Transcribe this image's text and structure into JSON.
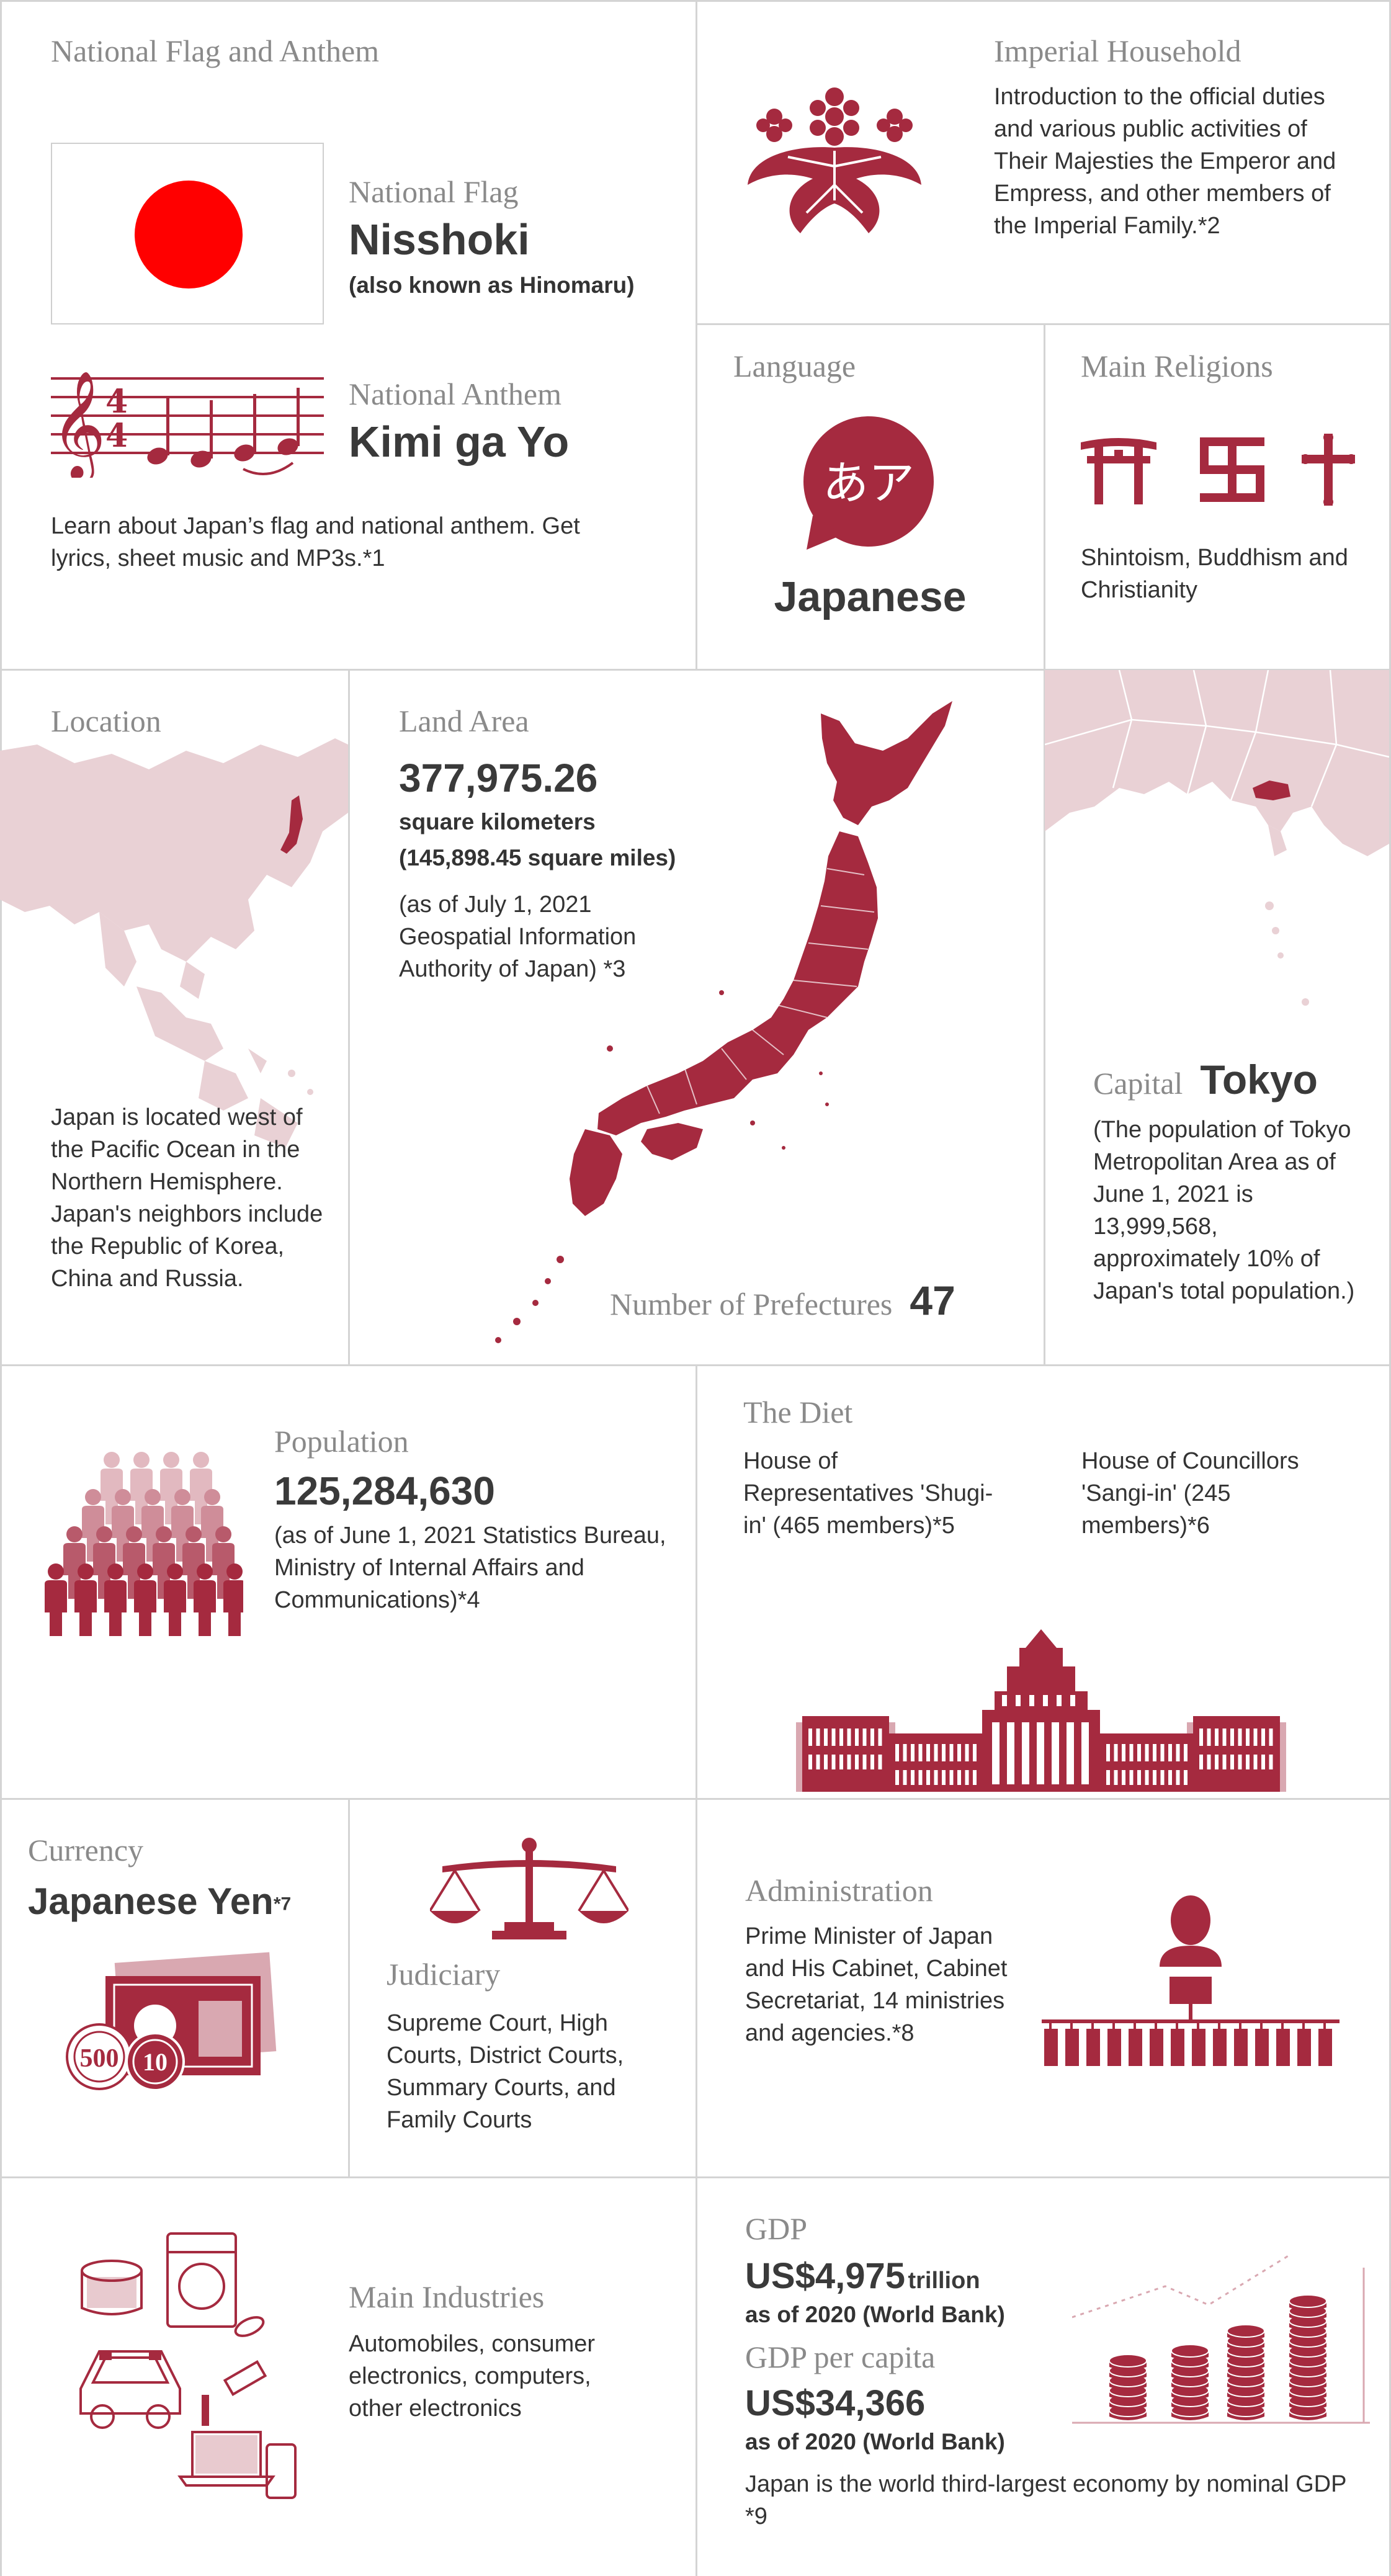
{
  "colors": {
    "accent": "#a52a3f",
    "accent_light": "#e9d1d5",
    "flag_red": "#ff0000",
    "rule": "#d4d4d4",
    "text": "#333333",
    "heading": "#8a8a8a"
  },
  "flag_anthem": {
    "heading": "National Flag and Anthem",
    "flag_label": "National Flag",
    "flag_name": "Nisshoki",
    "flag_aka": "(also known as Hinomaru)",
    "anthem_label": "National Anthem",
    "anthem_name": "Kimi ga Yo",
    "time_sig_top": "4",
    "time_sig_bottom": "4",
    "desc": "Learn about Japan’s flag and national anthem. Get lyrics, sheet music and MP3s.*1"
  },
  "imperial": {
    "heading": "Imperial Household",
    "desc": "Introduction to the official duties and various public activities of Their Majesties the Emperor and Empress, and other members of the Imperial Family.*2",
    "icon": "paulownia-crest-icon"
  },
  "language": {
    "heading": "Language",
    "glyph": "あア",
    "value": "Japanese"
  },
  "religions": {
    "heading": "Main Religions",
    "icons": [
      "torii-icon",
      "manji-icon",
      "cross-icon"
    ],
    "desc": "Shintoism, Buddhism and Christianity"
  },
  "location": {
    "heading": "Location",
    "desc": "Japan is located west of the Pacific Ocean in the Northern Hemisphere. Japan's neighbors include the Republic of Korea, China and Russia."
  },
  "land": {
    "heading": "Land Area",
    "value": "377,975.26",
    "unit": "square kilometers",
    "miles": "(145,898.45 square miles)",
    "note": "(as of July 1, 2021 Geospatial Information Authority of Japan) *3",
    "prefectures_label": "Number of Prefectures",
    "prefectures_value": "47"
  },
  "capital": {
    "heading": "Capital",
    "value": "Tokyo",
    "desc": "(The population of Tokyo Metropolitan Area as of June 1, 2021 is 13,999,568, approximately 10% of Japan's total population.)"
  },
  "population": {
    "heading": "Population",
    "value": "125,284,630",
    "note": "(as of June 1, 2021 Statistics Bureau, Ministry of Internal Affairs and Communications)*4"
  },
  "diet": {
    "heading": "The Diet",
    "house_rep": "House of Representatives 'Shugi-in' (465 members)*5",
    "house_coun": "House of Councillors 'Sangi-in' (245 members)*6"
  },
  "currency": {
    "heading": "Currency",
    "value": "Japanese Yen",
    "note": "*7",
    "coin_500": "500",
    "coin_10": "10"
  },
  "judiciary": {
    "heading": "Judiciary",
    "desc": "Supreme Court, High Courts, District Courts, Summary Courts, and Family Courts"
  },
  "administration": {
    "heading": "Administration",
    "desc": "Prime Minister of Japan and His Cabinet, Cabinet Secretariat, 14 ministries and agencies.*8"
  },
  "industries": {
    "heading": "Main Industries",
    "desc": "Automobiles, consumer electronics, computers, other electronics"
  },
  "gdp": {
    "heading": "GDP",
    "value": "US$4,975",
    "unit": "trillion",
    "asof": "as of 2020 (World Bank)",
    "per_capita_heading": "GDP per capita",
    "per_capita_value": "US$34,366",
    "per_capita_asof": "as of 2020 (World Bank)",
    "note": "Japan is the world third-largest economy by nominal GDP *9"
  }
}
